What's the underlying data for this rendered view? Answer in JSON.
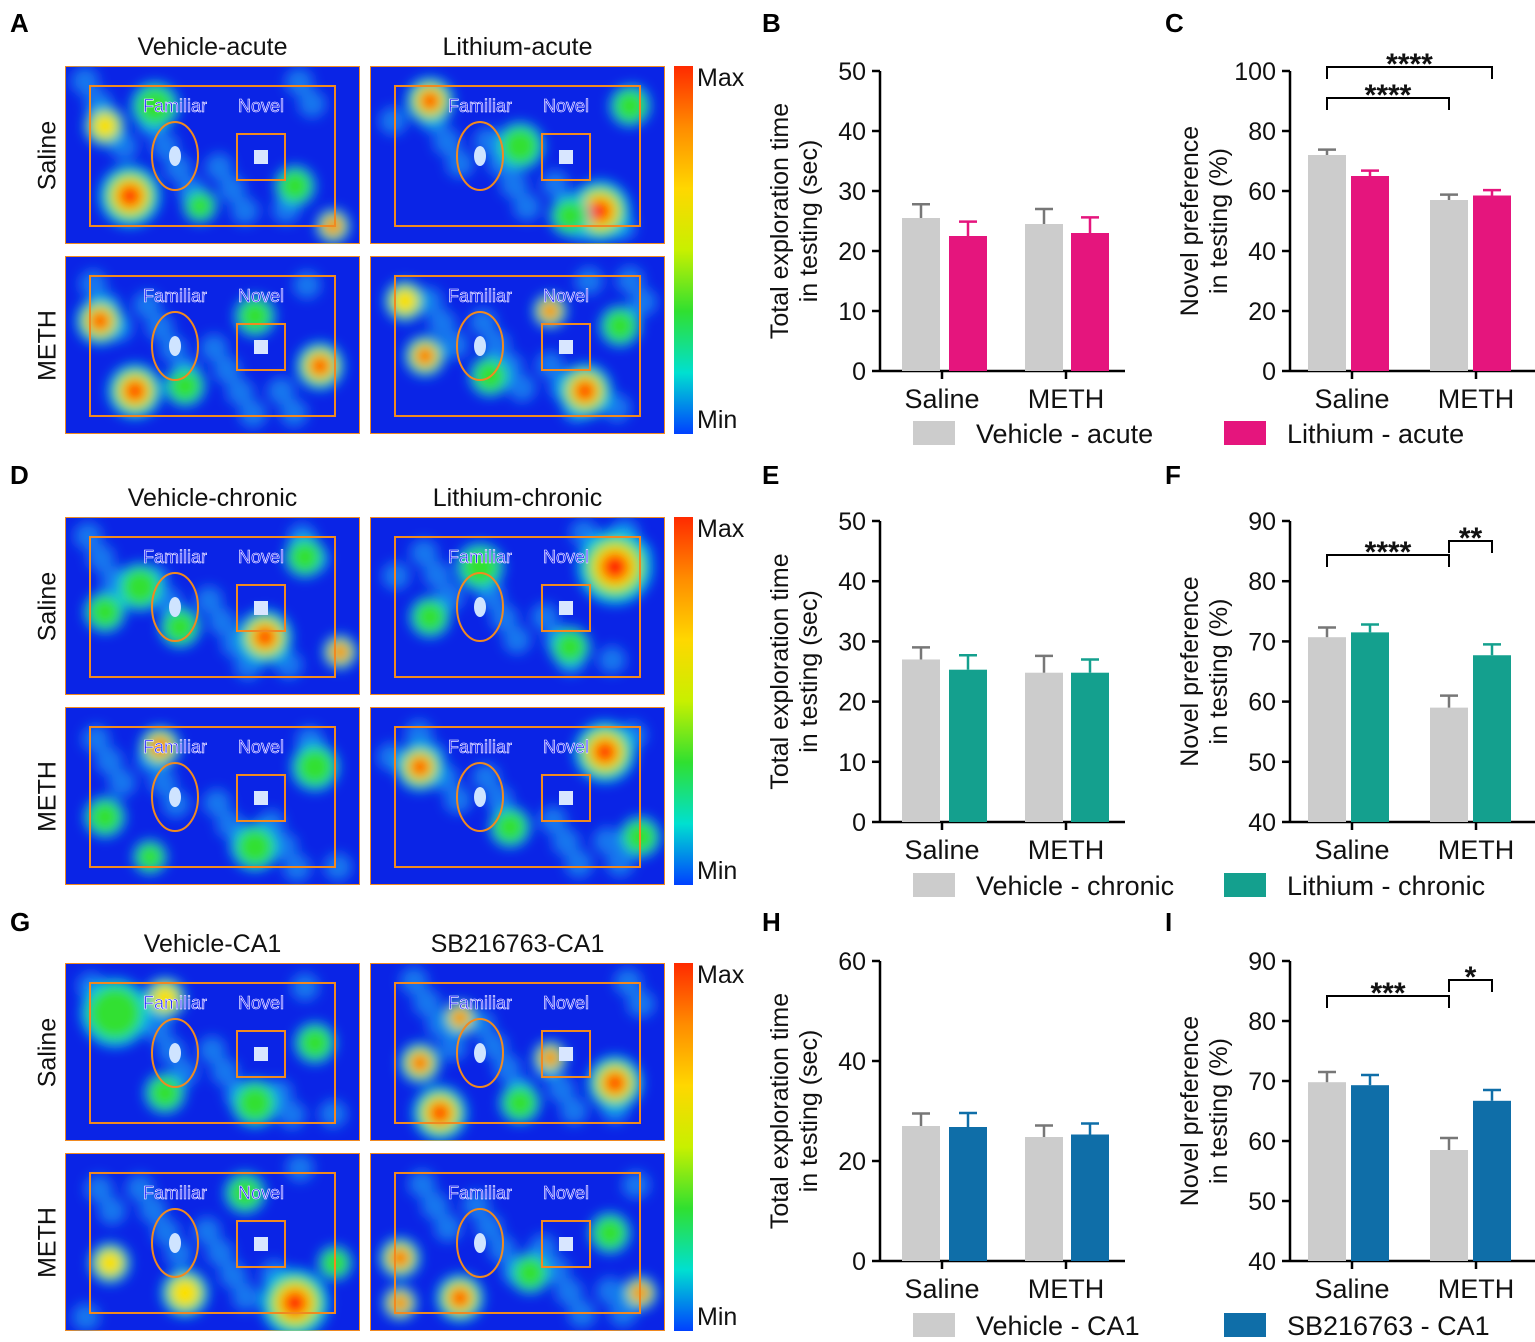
{
  "panel_letters": [
    "A",
    "B",
    "C",
    "D",
    "E",
    "F",
    "G",
    "H",
    "I"
  ],
  "heatmaps": [
    {
      "columns": [
        "Vehicle-acute",
        "Lithium-acute"
      ],
      "rows": [
        "Saline",
        "METH"
      ]
    },
    {
      "columns": [
        "Vehicle-chronic",
        "Lithium-chronic"
      ],
      "rows": [
        "Saline",
        "METH"
      ]
    },
    {
      "columns": [
        "Vehicle-CA1",
        "SB216763-CA1"
      ],
      "rows": [
        "Saline",
        "METH"
      ]
    }
  ],
  "object_labels": {
    "familiar": "Familiar",
    "novel": "Novel"
  },
  "colorbar": {
    "max": "Max",
    "min": "Min"
  },
  "colors": {
    "vehicle": "#cccccc",
    "lithium_acute": "#e5157d",
    "lithium_chronic": "#14a08e",
    "sb216763": "#0f6ea8"
  },
  "legends": [
    {
      "a": "Vehicle - acute",
      "b": "Lithium - acute"
    },
    {
      "a": "Vehicle - chronic",
      "b": "Lithium - chronic"
    },
    {
      "a": "Vehicle - CA1",
      "b": "SB216763 - CA1"
    }
  ],
  "chart_data": [
    {
      "panel": "B",
      "type": "bar",
      "ylabel": [
        "Total exploration time",
        "in testing (sec)"
      ],
      "categories": [
        "Saline",
        "METH"
      ],
      "ylim": [
        0,
        50
      ],
      "yticks": [
        0,
        10,
        20,
        30,
        40,
        50
      ],
      "series": [
        {
          "name": "Vehicle - acute",
          "values": [
            25.5,
            24.5
          ],
          "sem": [
            2.3,
            2.5
          ]
        },
        {
          "name": "Lithium - acute",
          "values": [
            22.5,
            23
          ],
          "sem": [
            2.4,
            2.6
          ]
        }
      ],
      "significance": []
    },
    {
      "panel": "C",
      "type": "bar",
      "ylabel": [
        "Novel preference",
        "in testing (%)"
      ],
      "categories": [
        "Saline",
        "METH"
      ],
      "ylim": [
        0,
        100
      ],
      "yticks": [
        0,
        20,
        40,
        60,
        80,
        100
      ],
      "series": [
        {
          "name": "Vehicle - acute",
          "values": [
            72,
            57
          ],
          "sem": [
            1.8,
            1.8
          ]
        },
        {
          "name": "Lithium - acute",
          "values": [
            65,
            58.5
          ],
          "sem": [
            1.8,
            1.8
          ]
        }
      ],
      "significance": [
        {
          "from": "Saline-Vehicle",
          "to": "METH-Vehicle",
          "label": "****"
        },
        {
          "from": "Saline-Vehicle",
          "to": "METH-Lithium",
          "label": "****"
        }
      ]
    },
    {
      "panel": "E",
      "type": "bar",
      "ylabel": [
        "Total exploration time",
        "in testing (sec)"
      ],
      "categories": [
        "Saline",
        "METH"
      ],
      "ylim": [
        0,
        50
      ],
      "yticks": [
        0,
        10,
        20,
        30,
        40,
        50
      ],
      "series": [
        {
          "name": "Vehicle - chronic",
          "values": [
            27,
            24.8
          ],
          "sem": [
            2,
            2.8
          ]
        },
        {
          "name": "Lithium - chronic",
          "values": [
            25.3,
            24.8
          ],
          "sem": [
            2.4,
            2.2
          ]
        }
      ],
      "significance": []
    },
    {
      "panel": "F",
      "type": "bar",
      "ylabel": [
        "Novel preference",
        "in testing (%)"
      ],
      "categories": [
        "Saline",
        "METH"
      ],
      "ylim": [
        40,
        90
      ],
      "yticks": [
        40,
        50,
        60,
        70,
        80,
        90
      ],
      "series": [
        {
          "name": "Vehicle - chronic",
          "values": [
            70.7,
            59
          ],
          "sem": [
            1.6,
            2
          ]
        },
        {
          "name": "Lithium - chronic",
          "values": [
            71.5,
            67.7
          ],
          "sem": [
            1.3,
            1.8
          ]
        }
      ],
      "significance": [
        {
          "from": "Saline-Vehicle",
          "to": "METH-Vehicle",
          "label": "****"
        },
        {
          "from": "METH-Vehicle",
          "to": "METH-Lithium",
          "label": "**"
        }
      ]
    },
    {
      "panel": "H",
      "type": "bar",
      "ylabel": [
        "Total exploration time",
        "in testing (sec)"
      ],
      "categories": [
        "Saline",
        "METH"
      ],
      "ylim": [
        0,
        60
      ],
      "yticks": [
        0,
        20,
        40,
        60
      ],
      "series": [
        {
          "name": "Vehicle - CA1",
          "values": [
            27,
            24.8
          ],
          "sem": [
            2.5,
            2.3
          ]
        },
        {
          "name": "SB216763 - CA1",
          "values": [
            26.8,
            25.3
          ],
          "sem": [
            2.8,
            2.2
          ]
        }
      ],
      "significance": []
    },
    {
      "panel": "I",
      "type": "bar",
      "ylabel": [
        "Novel preference",
        "in testing (%)"
      ],
      "categories": [
        "Saline",
        "METH"
      ],
      "ylim": [
        40,
        90
      ],
      "yticks": [
        40,
        50,
        60,
        70,
        80,
        90
      ],
      "series": [
        {
          "name": "Vehicle - CA1",
          "values": [
            69.8,
            58.5
          ],
          "sem": [
            1.7,
            2
          ]
        },
        {
          "name": "SB216763 - CA1",
          "values": [
            69.3,
            66.7
          ],
          "sem": [
            1.7,
            1.8
          ]
        }
      ],
      "significance": [
        {
          "from": "Saline-Vehicle",
          "to": "METH-Vehicle",
          "label": "***"
        },
        {
          "from": "METH-Vehicle",
          "to": "METH-SB216763",
          "label": "*"
        }
      ]
    }
  ]
}
